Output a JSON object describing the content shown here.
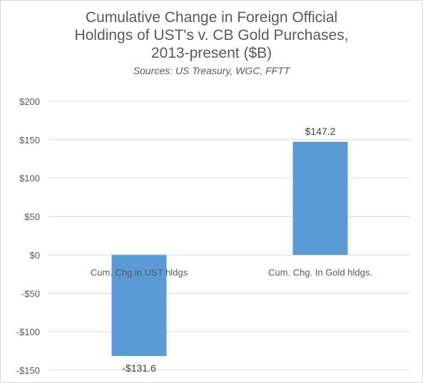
{
  "chart_data": {
    "type": "bar",
    "title_lines": [
      "Cumulative Change in Foreign Official",
      "Holdings of UST's v. CB Gold Purchases,",
      "2013-present ($B)"
    ],
    "subtitle": "Sources:  US Treasury, WGC, FFTT",
    "categories": [
      "Cum. Chg in UST hldgs",
      "Cum. Chg. In Gold hldgs."
    ],
    "values": [
      -131.6,
      147.2
    ],
    "data_labels": [
      "-$131.6",
      "$147.2"
    ],
    "ylim": [
      -150,
      200
    ],
    "yticks": [
      200,
      150,
      100,
      50,
      0,
      -50,
      -100,
      -150
    ],
    "ytick_labels": [
      "$200",
      "$150",
      "$100",
      "$50",
      "$0",
      "-$50",
      "-$100",
      "-$150"
    ],
    "grid": true,
    "bar_color": "#5b9bd5",
    "grid_color": "#d9d9d9"
  }
}
